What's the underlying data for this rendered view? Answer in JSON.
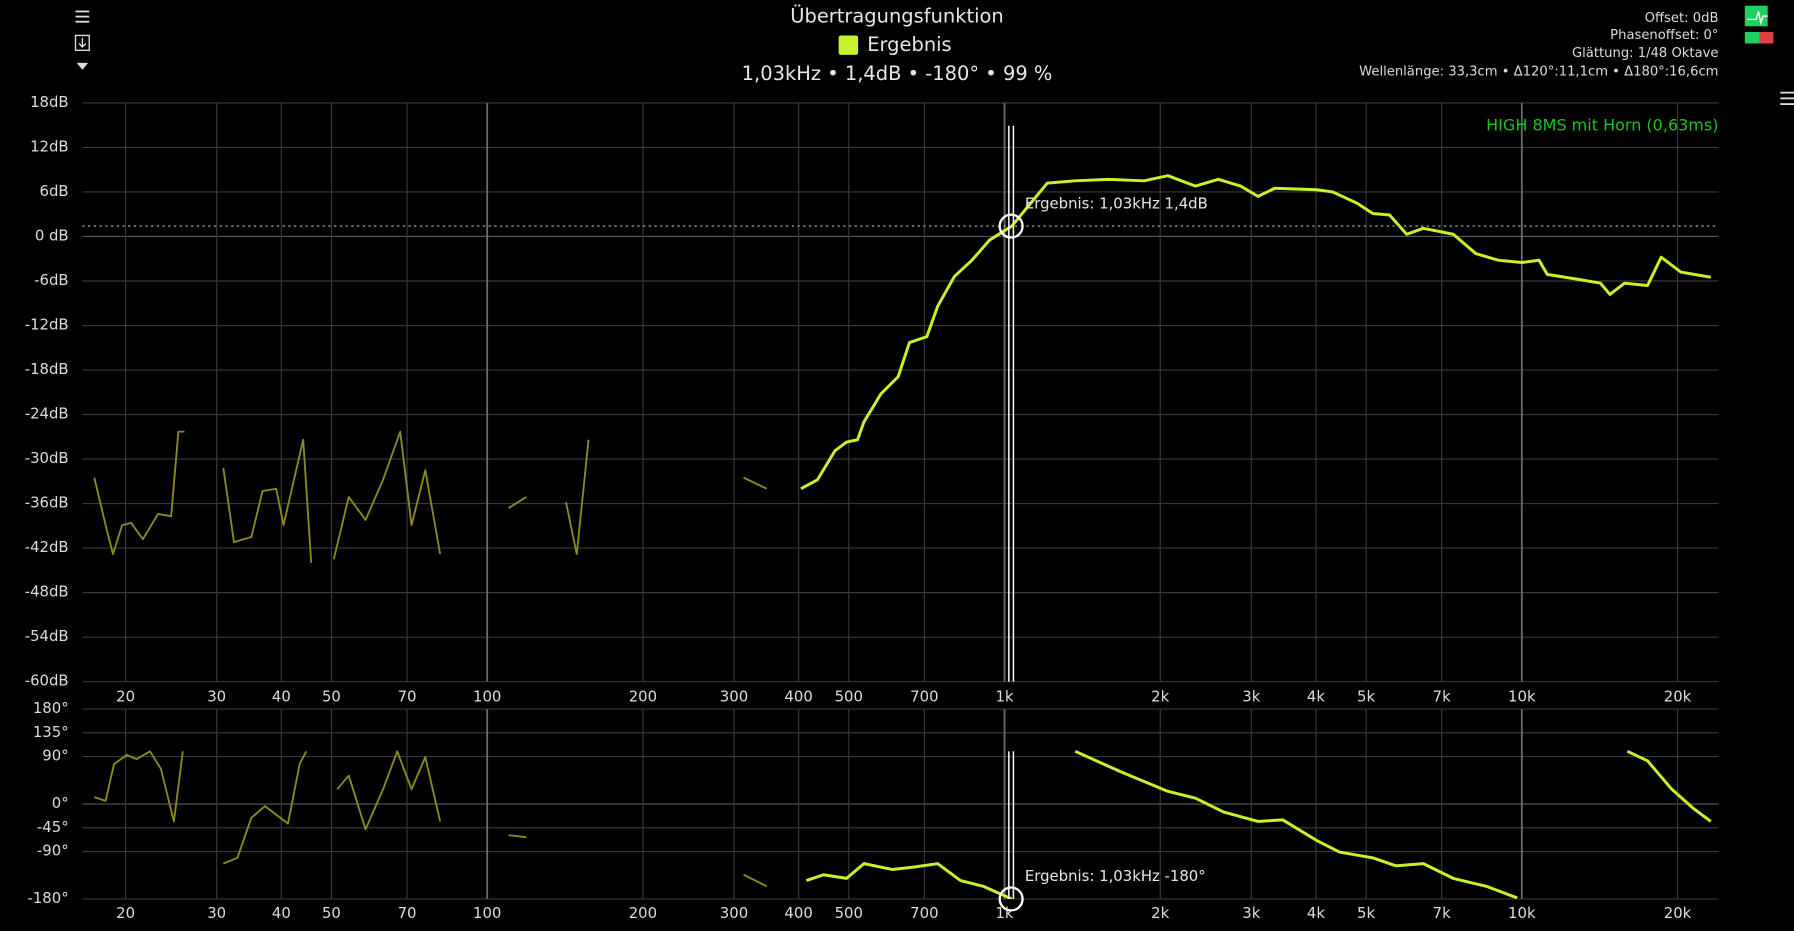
{
  "header": {
    "title": "Übertragungsfunktion",
    "readout": "1,03kHz • 1,4dB • -180° • 99 %"
  },
  "info": [
    "Offset: 0dB",
    "Phasenoffset: 0°",
    "Glättung: 1/48 Oktave",
    "Wellenlänge: 33,3cm • Δ120°:11,1cm • Δ180°:16,6cm"
  ],
  "chart_data": [
    {
      "type": "line",
      "xlog": true,
      "grid": true,
      "xlim": [
        16.5,
        24000
      ],
      "ylim": [
        -60,
        18
      ],
      "xticks": [
        20,
        30,
        40,
        50,
        70,
        100,
        200,
        300,
        400,
        500,
        700,
        {
          "value": 1000,
          "label": "1k"
        },
        {
          "value": 2000,
          "label": "2k"
        },
        {
          "value": 3000,
          "label": "3k"
        },
        {
          "value": 4000,
          "label": "4k"
        },
        {
          "value": 5000,
          "label": "5k"
        },
        {
          "value": 7000,
          "label": "7k"
        },
        {
          "value": 10000,
          "label": "10k"
        },
        {
          "value": 20000,
          "label": "20k"
        }
      ],
      "yticks": [
        {
          "value": 18,
          "label": "18dB"
        },
        {
          "value": 12,
          "label": "12dB"
        },
        {
          "value": 6,
          "label": "6dB"
        },
        {
          "value": 0,
          "label": "0 dB"
        },
        {
          "value": -6,
          "label": "-6dB"
        },
        {
          "value": -12,
          "label": "-12dB"
        },
        {
          "value": -18,
          "label": "-18dB"
        },
        {
          "value": -24,
          "label": "-24dB"
        },
        {
          "value": -30,
          "label": "-30dB"
        },
        {
          "value": -36,
          "label": "-36dB"
        },
        {
          "value": -42,
          "label": "-42dB"
        },
        {
          "value": -48,
          "label": "-48dB"
        },
        {
          "value": -54,
          "label": "-54dB"
        },
        {
          "value": -60,
          "label": "-60dB"
        }
      ],
      "annotation": {
        "text": "HIGH  8MS mit Horn (0,63ms)",
        "color": "#1fc21f"
      },
      "cursor": {
        "x": 1030,
        "y": 1.4,
        "label": "Ergebnis: 1,03kHz 1,4dB"
      },
      "series": [
        {
          "name": "Ergebnis",
          "color": "#c6f22a",
          "x": [
            404,
            435,
            470,
            495,
            520,
            535,
            577,
            623,
            655,
            708,
            743,
            800,
            865,
            935,
            1033,
            1210,
            1370,
            1590,
            1860,
            2070,
            2340,
            2590,
            2860,
            3090,
            3330,
            4010,
            4310,
            4800,
            5150,
            5550,
            5990,
            6450,
            7370,
            8150,
            9000,
            10000,
            10800,
            11200,
            12900,
            14200,
            14800,
            15800,
            17500,
            18600,
            20300,
            23200
          ],
          "values": [
            -34,
            -32.8,
            -28.9,
            -27.7,
            -27.4,
            -25,
            -21.2,
            -18.9,
            -14.3,
            -13.5,
            -9.4,
            -5.4,
            -3.2,
            -0.5,
            1.4,
            7.2,
            7.5,
            7.7,
            7.5,
            8.2,
            6.8,
            7.7,
            6.8,
            5.4,
            6.5,
            6.3,
            6,
            4.5,
            3.1,
            2.9,
            0.3,
            1.1,
            0.3,
            -2.3,
            -3.2,
            -3.5,
            -3.2,
            -5.1,
            -5.8,
            -6.3,
            -7.8,
            -6.3,
            -6.6,
            -2.8,
            -4.8,
            -5.5
          ]
        },
        {
          "color": "#8c8c1e",
          "x": [
            17.4,
            18.3,
            18.9,
            19.7,
            20.5,
            21.6,
            23.1,
            24.5,
            25.3,
            26,
            28,
            30.9,
            32.4,
            35,
            36.8,
            39.1,
            40.4,
            44.1,
            45.7,
            48,
            50.5,
            54,
            58.2,
            62.9,
            67.9,
            71.4,
            75.9,
            81.1,
            95,
            110,
            119,
            130,
            142,
            149,
            157,
            200,
            313,
            347
          ],
          "values": [
            -32.5,
            -38.9,
            -42.8,
            -38.9,
            -38.6,
            -40.8,
            -37.4,
            -37.7,
            -26.3,
            -26.3,
            null,
            -31.2,
            -41.2,
            -40.5,
            -34.3,
            -34,
            -38.9,
            -27.4,
            -44,
            null,
            -43.5,
            -35.1,
            -38.2,
            -32.8,
            -26.3,
            -38.9,
            -31.5,
            -42.8,
            null,
            -36.6,
            -35.1,
            null,
            -35.8,
            -42.8,
            -27.4,
            null,
            -32.5,
            -34
          ]
        }
      ]
    },
    {
      "type": "line",
      "xlog": true,
      "grid": true,
      "xlim": [
        16.5,
        24000
      ],
      "ylim": [
        -180,
        180
      ],
      "xticks": [
        20,
        30,
        40,
        50,
        70,
        100,
        200,
        300,
        400,
        500,
        700,
        {
          "value": 1000,
          "label": "1k"
        },
        {
          "value": 2000,
          "label": "2k"
        },
        {
          "value": 3000,
          "label": "3k"
        },
        {
          "value": 4000,
          "label": "4k"
        },
        {
          "value": 5000,
          "label": "5k"
        },
        {
          "value": 7000,
          "label": "7k"
        },
        {
          "value": 10000,
          "label": "10k"
        },
        {
          "value": 20000,
          "label": "20k"
        }
      ],
      "yticks": [
        {
          "value": 180,
          "label": "180°"
        },
        {
          "value": 135,
          "label": "135°"
        },
        {
          "value": 90,
          "label": "90°"
        },
        {
          "value": 0,
          "label": "0°"
        },
        {
          "value": -45,
          "label": "-45°"
        },
        {
          "value": -90,
          "label": "-90°"
        },
        {
          "value": -180,
          "label": "-180°"
        }
      ],
      "cursor": {
        "x": 1030,
        "y": -180,
        "label": "Ergebnis: 1,03kHz -180°"
      },
      "series": [
        {
          "name": "Ergebnis",
          "color": "#c6f22a",
          "x": [
            414,
            447,
            495,
            535,
            607,
            673,
            743,
            822,
            910,
            1033,
            1200,
            1370,
            1680,
            2070,
            2340,
            2650,
            3090,
            3450,
            4010,
            4440,
            5150,
            5710,
            6450,
            7370,
            8540,
            9800,
            12500,
            16000,
            17500,
            19500,
            21500,
            23200
          ],
          "values": [
            -145,
            -134,
            -141,
            -113,
            -124,
            -119,
            -113,
            -145,
            -156,
            -180,
            null,
            100,
            61,
            24,
            11,
            -15,
            -33,
            -30,
            -69,
            -91,
            -102,
            -117,
            -113,
            -141,
            -156,
            -178,
            null,
            100,
            82,
            28,
            -9,
            -33
          ]
        },
        {
          "color": "#8c8c1e",
          "x": [
            17.4,
            18.3,
            19,
            20.1,
            21,
            22.3,
            23.4,
            24.8,
            25.8,
            28,
            30.9,
            32.9,
            35,
            37.2,
            39.8,
            41.2,
            43.4,
            44.7,
            48,
            51.3,
            54,
            58.2,
            62.9,
            67,
            71.4,
            75.9,
            81.1,
            95,
            110,
            119,
            200,
            313,
            347
          ],
          "values": [
            13,
            6,
            76,
            93,
            85,
            100,
            67,
            -33,
            100,
            null,
            -113,
            -102,
            -26,
            -4,
            -26,
            -37,
            76,
            100,
            null,
            28,
            54,
            -48,
            28,
            100,
            28,
            89,
            -33,
            null,
            -59,
            -63,
            null,
            -134,
            -156
          ]
        }
      ]
    }
  ]
}
